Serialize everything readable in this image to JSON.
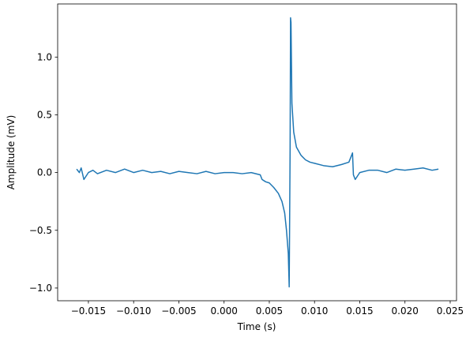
{
  "chart_data": {
    "type": "line",
    "xlabel": "Time (s)",
    "ylabel": "Amplitude (mV)",
    "x": [
      -0.0163,
      -0.016,
      -0.0158,
      -0.0155,
      -0.015,
      -0.0145,
      -0.014,
      -0.013,
      -0.012,
      -0.011,
      -0.01,
      -0.009,
      -0.008,
      -0.007,
      -0.006,
      -0.005,
      -0.004,
      -0.003,
      -0.002,
      -0.001,
      0.0,
      0.001,
      0.002,
      0.003,
      0.004,
      0.0042,
      0.0046,
      0.005,
      0.0055,
      0.006,
      0.0064,
      0.0067,
      0.0069,
      0.0071,
      0.0072,
      0.0073,
      0.00735,
      0.0074,
      0.0075,
      0.0077,
      0.008,
      0.0085,
      0.009,
      0.0095,
      0.01,
      0.011,
      0.012,
      0.013,
      0.0138,
      0.0142,
      0.0143,
      0.0145,
      0.015,
      0.016,
      0.017,
      0.018,
      0.019,
      0.02,
      0.021,
      0.022,
      0.023,
      0.0237
    ],
    "series": [
      {
        "color": "#1f77b4",
        "values": [
          0.03,
          0.0,
          0.04,
          -0.06,
          0.0,
          0.02,
          -0.01,
          0.02,
          0.0,
          0.03,
          0.0,
          0.02,
          0.0,
          0.01,
          -0.01,
          0.01,
          0.0,
          -0.01,
          0.01,
          -0.01,
          0.0,
          0.0,
          -0.01,
          0.0,
          -0.02,
          -0.06,
          -0.08,
          -0.09,
          -0.13,
          -0.18,
          -0.25,
          -0.35,
          -0.5,
          -0.7,
          -0.99,
          0.2,
          1.34,
          1.3,
          0.6,
          0.35,
          0.22,
          0.15,
          0.11,
          0.09,
          0.08,
          0.06,
          0.05,
          0.07,
          0.09,
          0.17,
          -0.02,
          -0.06,
          0.0,
          0.02,
          0.02,
          0.0,
          0.03,
          0.02,
          0.03,
          0.04,
          0.02,
          0.03
        ]
      }
    ],
    "xlim": [
      -0.0184,
      0.0257
    ],
    "ylim": [
      -1.11,
      1.46
    ],
    "xticks": [
      {
        "value": -0.015,
        "label": "−0.015"
      },
      {
        "value": -0.01,
        "label": "−0.010"
      },
      {
        "value": -0.005,
        "label": "−0.005"
      },
      {
        "value": 0.0,
        "label": "0.000"
      },
      0.005,
      {
        "value": 0.01,
        "label": "0.010"
      },
      0.015,
      {
        "value": 0.02,
        "label": "0.020"
      },
      0.025
    ],
    "yticks": [
      {
        "value": -1.0,
        "label": "−1.0"
      },
      {
        "value": -0.5,
        "label": "−0.5"
      },
      {
        "value": 0.0,
        "label": "0.0"
      },
      0.5,
      {
        "value": 1.0,
        "label": "1.0"
      }
    ],
    "grid": false
  }
}
